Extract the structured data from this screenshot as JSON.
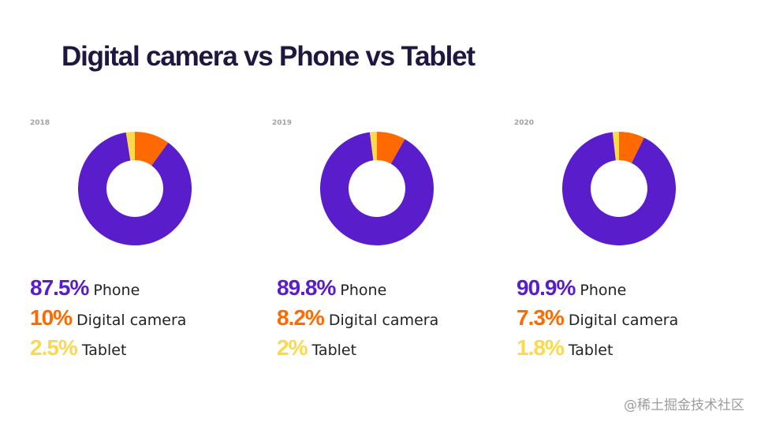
{
  "title": "Digital camera vs Phone vs Tablet",
  "colors": {
    "phone": "#5a1dcc",
    "digital_camera": "#ff6a00",
    "tablet": "#fbd94a"
  },
  "chart_data": [
    {
      "type": "pie",
      "style": "donut",
      "title": "2018",
      "categories": [
        "Phone",
        "Digital camera",
        "Tablet"
      ],
      "values": [
        87.5,
        10,
        2.5
      ],
      "labels": [
        "87.5%",
        "10%",
        "2.5%"
      ]
    },
    {
      "type": "pie",
      "style": "donut",
      "title": "2019",
      "categories": [
        "Phone",
        "Digital camera",
        "Tablet"
      ],
      "values": [
        89.8,
        8.2,
        2
      ],
      "labels": [
        "89.8%",
        "8.2%",
        "2%"
      ]
    },
    {
      "type": "pie",
      "style": "donut",
      "title": "2020",
      "categories": [
        "Phone",
        "Digital camera",
        "Tablet"
      ],
      "values": [
        90.9,
        7.3,
        1.8
      ],
      "labels": [
        "90.9%",
        "7.3%",
        "1.8%"
      ]
    }
  ],
  "watermark": "@稀土掘金技术社区"
}
